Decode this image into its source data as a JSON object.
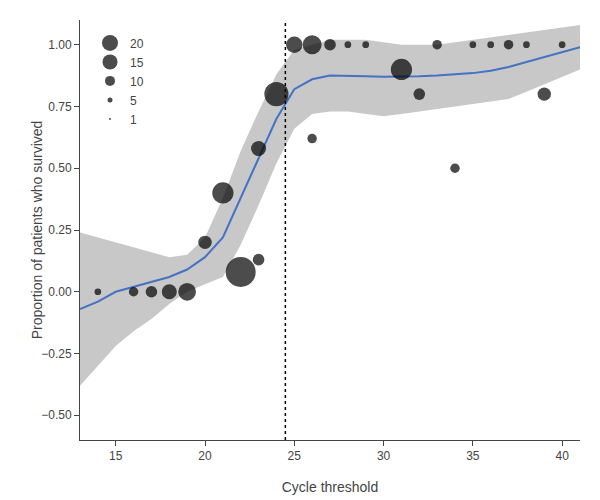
{
  "chart_data": {
    "type": "scatter",
    "xlabel": "Cycle threshold",
    "ylabel": "Proportion of patients who survived",
    "xlim": [
      13,
      41
    ],
    "ylim": [
      -0.6,
      1.1
    ],
    "xticks": [
      15,
      20,
      25,
      30,
      35,
      40
    ],
    "yticks": [
      {
        "value": -0.5,
        "label": "−0.50"
      },
      {
        "value": -0.25,
        "label": "−0.25"
      },
      {
        "value": 0.0,
        "label": "0.00"
      },
      {
        "value": 0.25,
        "label": "0.25"
      },
      {
        "value": 0.5,
        "label": "0.50"
      },
      {
        "value": 0.75,
        "label": "0.75"
      },
      {
        "value": 1.0,
        "label": "1.00"
      }
    ],
    "grid": false,
    "legend": "upper left",
    "color": "#000000",
    "points": {
      "x": [
        14,
        16,
        17,
        18,
        19,
        20,
        21,
        22,
        23,
        23,
        24,
        25,
        26,
        26,
        27,
        28,
        29,
        31,
        32,
        33,
        34,
        35,
        36,
        37,
        38,
        39,
        40
      ],
      "y": [
        0.0,
        0.0,
        0.0,
        0.0,
        0.0,
        0.2,
        0.4,
        0.08,
        0.13,
        0.58,
        0.8,
        1.0,
        1.0,
        0.62,
        1.0,
        1.0,
        1.0,
        0.9,
        0.8,
        1.0,
        0.5,
        1.0,
        1.0,
        1.0,
        1.0,
        0.8,
        1.0
      ],
      "size": [
        1,
        2,
        3,
        5,
        7,
        4,
        10,
        20,
        3,
        5,
        13,
        6,
        8,
        2,
        3,
        1,
        1,
        10,
        3,
        2,
        2,
        1,
        1,
        2,
        1,
        4,
        1
      ]
    },
    "legend_sizes": [
      1,
      5,
      10,
      15,
      20
    ],
    "loess": {
      "x": [
        13,
        14,
        15,
        16,
        17,
        18,
        19,
        20,
        21,
        22,
        23,
        24,
        25,
        26,
        27,
        28,
        29,
        30,
        31,
        32,
        33,
        34,
        35,
        36,
        37,
        38,
        39,
        40,
        41
      ],
      "y": [
        -0.07,
        -0.04,
        0.0,
        0.02,
        0.04,
        0.06,
        0.09,
        0.14,
        0.22,
        0.38,
        0.54,
        0.7,
        0.82,
        0.86,
        0.875,
        0.875,
        0.872,
        0.87,
        0.87,
        0.872,
        0.875,
        0.88,
        0.885,
        0.895,
        0.91,
        0.93,
        0.95,
        0.97,
        0.99
      ],
      "upper": [
        0.24,
        0.22,
        0.2,
        0.18,
        0.16,
        0.14,
        0.15,
        0.22,
        0.38,
        0.57,
        0.73,
        0.88,
        0.98,
        1.0,
        1.02,
        1.02,
        1.02,
        1.01,
        1.0,
        1.0,
        1.0,
        1.01,
        1.02,
        1.03,
        1.04,
        1.05,
        1.06,
        1.07,
        1.08
      ],
      "lower": [
        -0.38,
        -0.3,
        -0.22,
        -0.16,
        -0.11,
        -0.05,
        0.0,
        0.03,
        0.06,
        0.19,
        0.35,
        0.52,
        0.66,
        0.72,
        0.73,
        0.73,
        0.72,
        0.71,
        0.72,
        0.73,
        0.74,
        0.75,
        0.76,
        0.77,
        0.78,
        0.81,
        0.84,
        0.87,
        0.9
      ],
      "color": "#4472C4",
      "ci_color": "#C8C8C8"
    },
    "vline": {
      "x": 24.5,
      "color": "#000000",
      "line_style": "dotted"
    }
  }
}
